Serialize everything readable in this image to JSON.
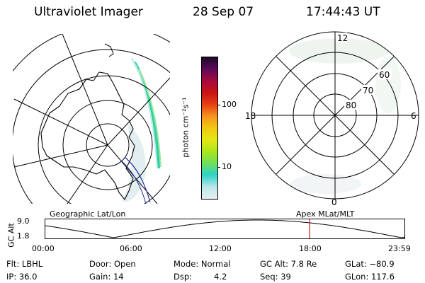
{
  "header": {
    "instrument": "Ultraviolet Imager",
    "date": "28 Sep 07",
    "time": "17:44:43 UT"
  },
  "panels": {
    "left_label": "Geographic Lat/Lon",
    "right_label": "Apex MLat/MLT"
  },
  "colorbar": {
    "unit_label": "photon cm⁻²s⁻¹",
    "ticks": [
      {
        "label": "100",
        "value": 100
      },
      {
        "label": "10",
        "value": 10
      }
    ],
    "colors": [
      "#e6eef0",
      "#bfe7ec",
      "#2ed2c8",
      "#6ee05a",
      "#a8e61e",
      "#e6e614",
      "#f0c814",
      "#f5961e",
      "#e63c14",
      "#c81414",
      "#aa0a3c",
      "#5a0a5a",
      "#1a0a28"
    ]
  },
  "mlt_plot": {
    "noon": "12",
    "midnight": "0",
    "dawn": "6",
    "dusk": "18",
    "lat_labels": [
      {
        "label": "60",
        "lat": 60
      },
      {
        "label": "70",
        "lat": 70
      },
      {
        "label": "80",
        "lat": 80
      }
    ]
  },
  "altitude_plot": {
    "axis_label": "GC Alt",
    "y_max": "9.0",
    "y_min": "1.8",
    "x_ticks": [
      "00:00",
      "06:00",
      "12:00",
      "18:00",
      "23:59"
    ],
    "current_time_color": "#e01010"
  },
  "footer": {
    "filter": "Flt: LBHL",
    "door": "Door: Open",
    "mode": "Mode: Normal",
    "gc_alt": "GC Alt: 7.8 Re",
    "glat": "GLat: −80.9",
    "ip": "IP: 36.0",
    "gain": "Gain: 14",
    "dsp_label": "Dsp:",
    "dsp_value": "4.2",
    "seq": "Seq: 39",
    "glon": "GLon: 117.6"
  }
}
